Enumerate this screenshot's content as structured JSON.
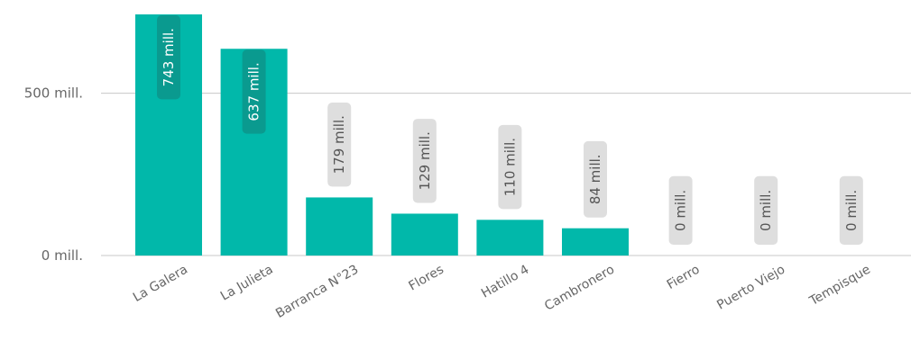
{
  "chart_data": {
    "type": "bar",
    "categories": [
      "La Galera",
      "La Julieta",
      "Barranca N°23",
      "Flores",
      "Hatillo 4",
      "Cambronero",
      "Fierro",
      "Puerto Viejo",
      "Tempisque"
    ],
    "values": [
      743,
      637,
      179,
      129,
      110,
      84,
      0,
      0,
      0
    ],
    "data_labels": [
      "743 mill.",
      "637 mill.",
      "179 mill.",
      "129 mill.",
      "110 mill.",
      "84 mill.",
      "0 mill.",
      "0 mill.",
      "0 mill."
    ],
    "yticks": [
      {
        "value": 0,
        "label": "0 mill."
      },
      {
        "value": 500,
        "label": "500 mill."
      }
    ],
    "ylim": [
      0,
      743
    ],
    "title": "",
    "xlabel": "",
    "ylabel": "",
    "grid": true,
    "legend": "none",
    "colors": {
      "bar": "#01b8aa",
      "label_bg_inside": "#0a9a8f",
      "label_text_inside": "#ffffff",
      "label_bg_outside": "#dedede",
      "label_text_outside": "#555555",
      "grid": "#c8c8c8",
      "tick_text": "#666666"
    }
  }
}
